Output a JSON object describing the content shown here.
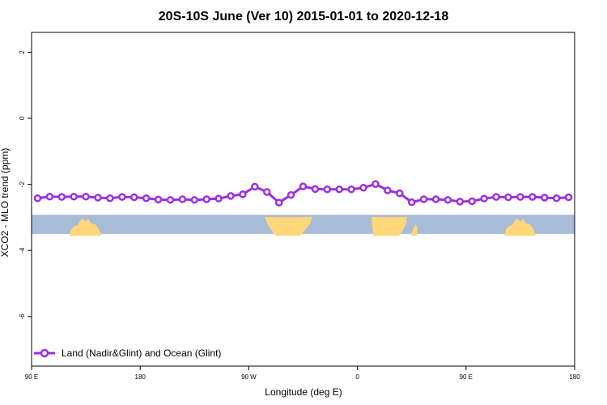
{
  "chart_data": {
    "type": "line",
    "title": "20S-10S June (Ver 10)   2015-01-01 to 2020-12-18",
    "xlabel": "Longitude (deg E)",
    "ylabel": "XCO2 - MLO trend (ppm)",
    "x_ticks": [
      {
        "value": 0,
        "label": "90 E"
      },
      {
        "value": 90,
        "label": "180"
      },
      {
        "value": 180,
        "label": "90 W"
      },
      {
        "value": 270,
        "label": "0"
      },
      {
        "value": 360,
        "label": "90 E"
      },
      {
        "value": 450,
        "label": "180"
      }
    ],
    "xlim": [
      0,
      450
    ],
    "ylim": [
      -7.5,
      2.6
    ],
    "y_ticks": [
      {
        "value": 2,
        "label": "2"
      },
      {
        "value": 0,
        "label": "0"
      },
      {
        "value": -2,
        "label": "-2"
      },
      {
        "value": -4,
        "label": "-4"
      },
      {
        "value": -6,
        "label": "-6"
      }
    ],
    "series": [
      {
        "name": "Land (Nadir&Glint) and Ocean (Glint)",
        "color": "#9b30e0",
        "x": [
          5,
          15,
          25,
          35,
          45,
          55,
          65,
          75,
          85,
          95,
          105,
          115,
          125,
          135,
          145,
          155,
          165,
          175,
          185,
          195,
          205,
          215,
          225,
          235,
          245,
          255,
          265,
          275,
          285,
          295,
          305,
          315,
          325,
          335,
          345,
          355,
          365,
          375,
          385,
          395,
          405,
          415,
          425,
          435,
          445
        ],
        "y": [
          -2.42,
          -2.37,
          -2.38,
          -2.37,
          -2.37,
          -2.4,
          -2.42,
          -2.38,
          -2.39,
          -2.42,
          -2.46,
          -2.47,
          -2.45,
          -2.47,
          -2.45,
          -2.43,
          -2.35,
          -2.3,
          -2.07,
          -2.23,
          -2.55,
          -2.32,
          -2.06,
          -2.14,
          -2.15,
          -2.15,
          -2.15,
          -2.1,
          -1.99,
          -2.18,
          -2.27,
          -2.54,
          -2.45,
          -2.45,
          -2.47,
          -2.52,
          -2.51,
          -2.43,
          -2.38,
          -2.39,
          -2.38,
          -2.38,
          -2.4,
          -2.42,
          -2.39
        ]
      }
    ],
    "legend": {
      "position": "bottom-left"
    },
    "grid": false,
    "background_band": {
      "description_free_ymin": -3.5,
      "ymax": -2.92,
      "ocean_color": "#a8bcd8",
      "land_color": "#ffd67a"
    }
  }
}
